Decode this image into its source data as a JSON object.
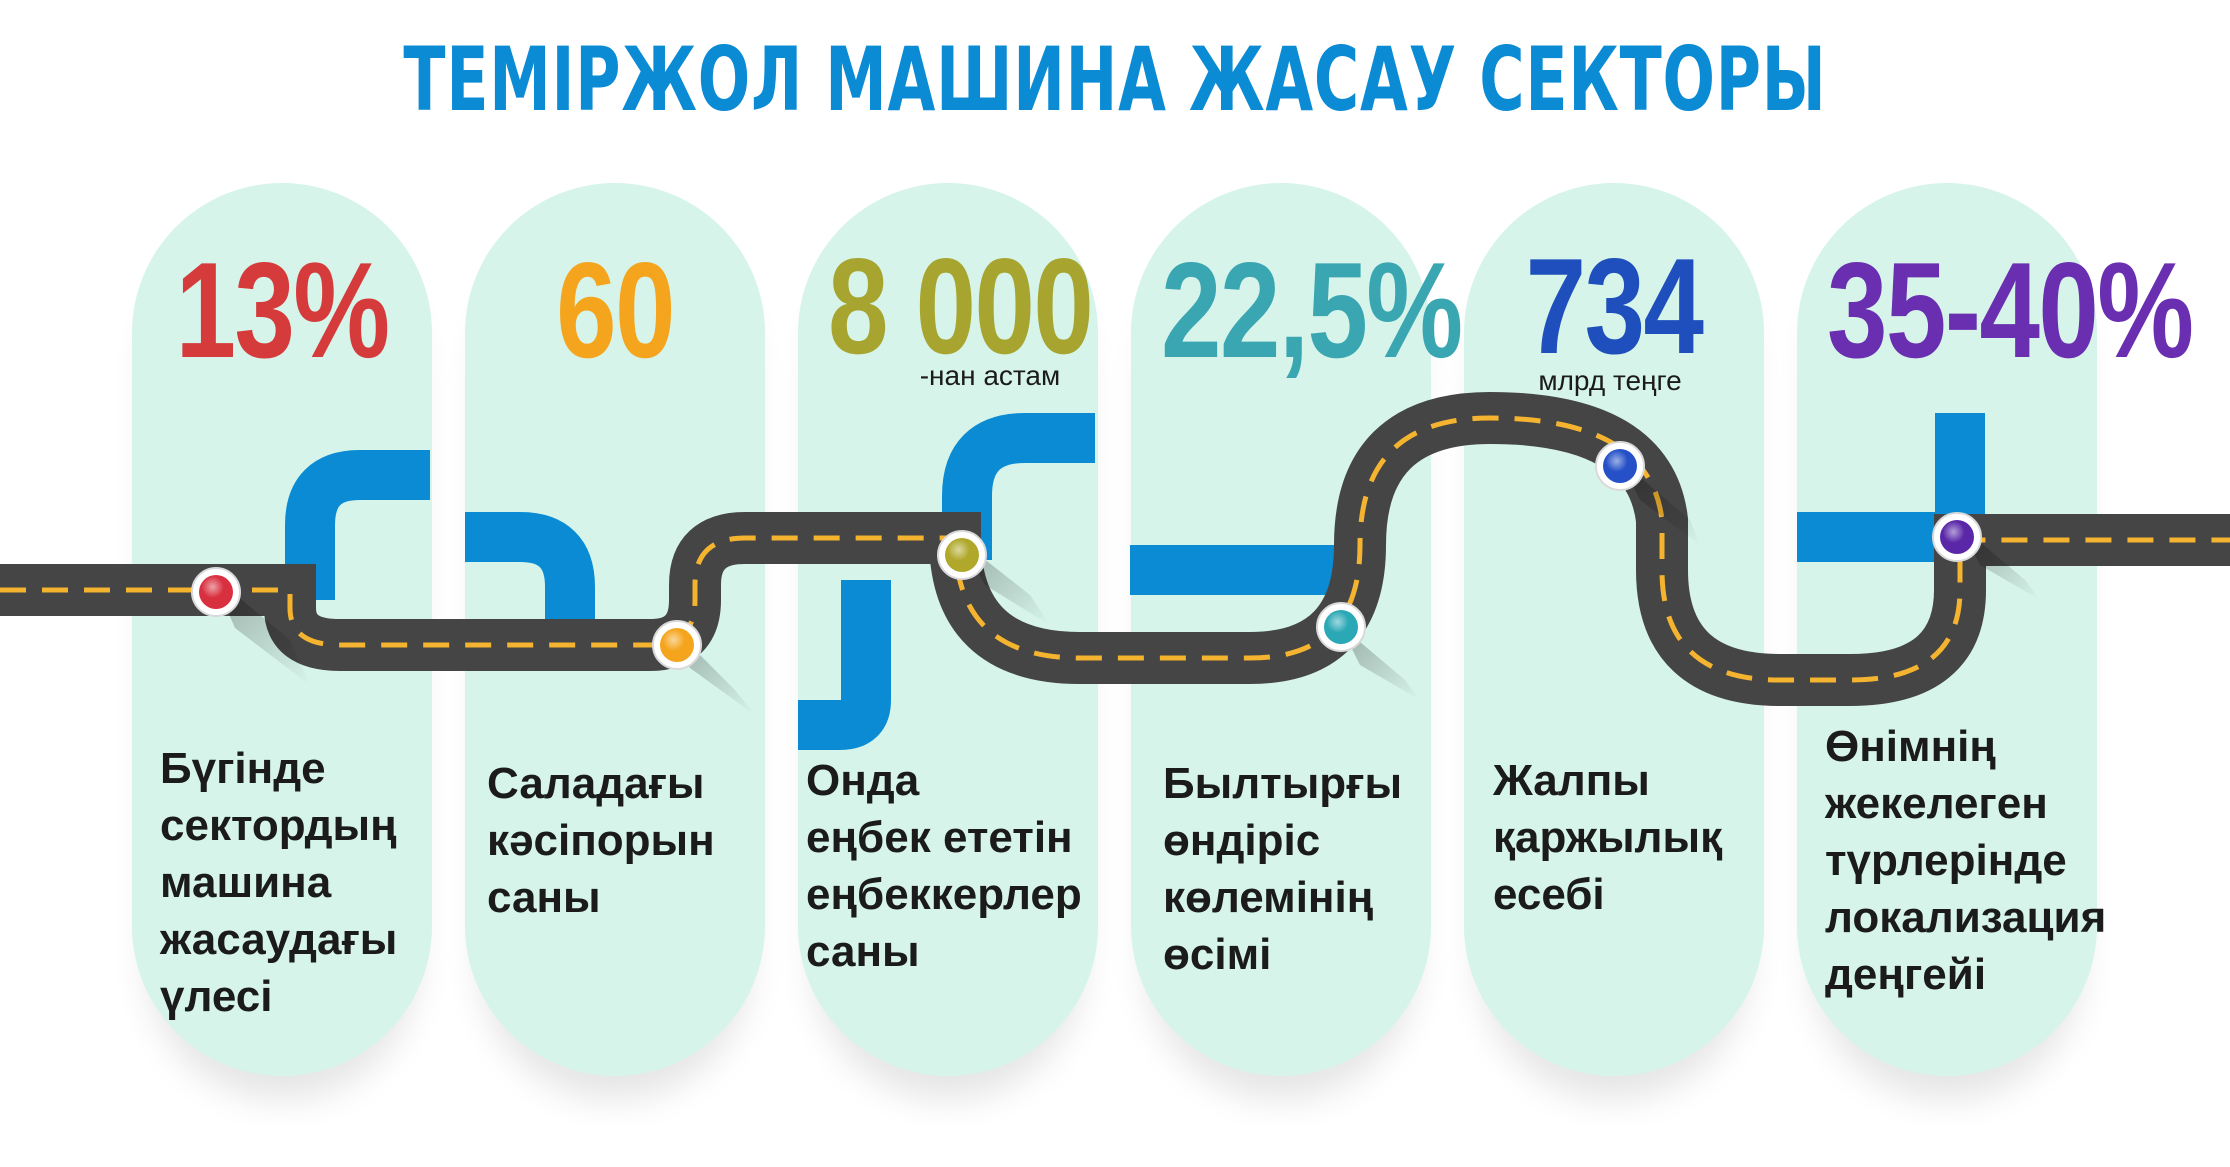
{
  "title": "ТЕМІРЖОЛ МАШИНА ЖАСАУ СЕКТОРЫ",
  "colors": {
    "title": "#0a8bd4",
    "pill_bg": "#d6f4ea",
    "road": "#454545",
    "road_dash": "#f5b430",
    "pipe": "#0a8bd4"
  },
  "stats": [
    {
      "value": "13%",
      "sub": "",
      "color": "#d63b3b",
      "marker_color": "#d9303f",
      "label": "Бүгінде\nсектордың\nмашина\nжасаудағы\nүлесі"
    },
    {
      "value": "60",
      "sub": "",
      "color": "#f5a51d",
      "marker_color": "#f5a51d",
      "label": "Саладағы\nкәсіпорын\nсаны"
    },
    {
      "value": "8 000",
      "sub": "-нан астам",
      "color": "#a7a52f",
      "marker_color": "#b0a82a",
      "label": "Онда\nеңбек ететін\nеңбеккерлер\nсаны"
    },
    {
      "value": "22,5%",
      "sub": "",
      "color": "#3aa6b2",
      "marker_color": "#2aa8b5",
      "label": "Былтырғы\nөндіріс\nкөлемінің\nөсімі"
    },
    {
      "value": "734",
      "sub": "млрд теңге",
      "color": "#1f4fbd",
      "marker_color": "#2550c7",
      "label": "Жалпы\nқаржылық\nесебі"
    },
    {
      "value": "35-40%",
      "sub": "",
      "color": "#6a2fb0",
      "marker_color": "#5a27a8",
      "label": "Өнімнің\nжекелеген\nтүрлерінде\nлокализация\nдеңгейі"
    }
  ]
}
